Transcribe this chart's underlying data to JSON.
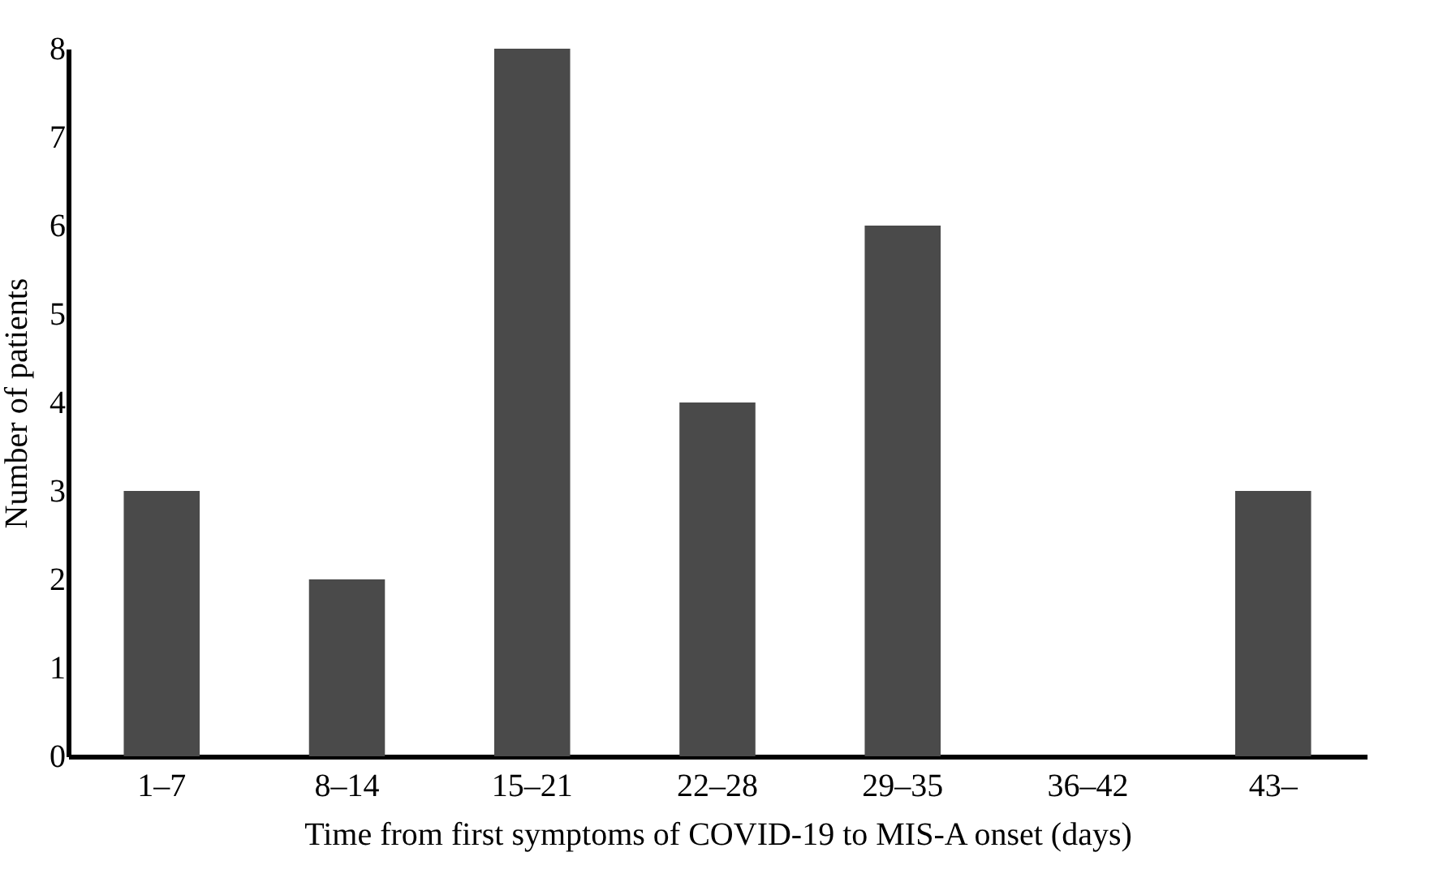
{
  "chart_data": {
    "type": "bar",
    "xlabel": "Time from first symptoms of COVID-19 to MIS-A onset (days)",
    "ylabel": "Number of patients",
    "categories": [
      "1–7",
      "8–14",
      "15–21",
      "22–28",
      "29–35",
      "36–42",
      "43–"
    ],
    "values": [
      3,
      2,
      8,
      4,
      6,
      0,
      3
    ],
    "color": "#4a4a4a",
    "ylim": [
      0,
      8
    ],
    "yticks": [
      0,
      1,
      2,
      3,
      4,
      5,
      6,
      7,
      8
    ],
    "grid": false
  }
}
